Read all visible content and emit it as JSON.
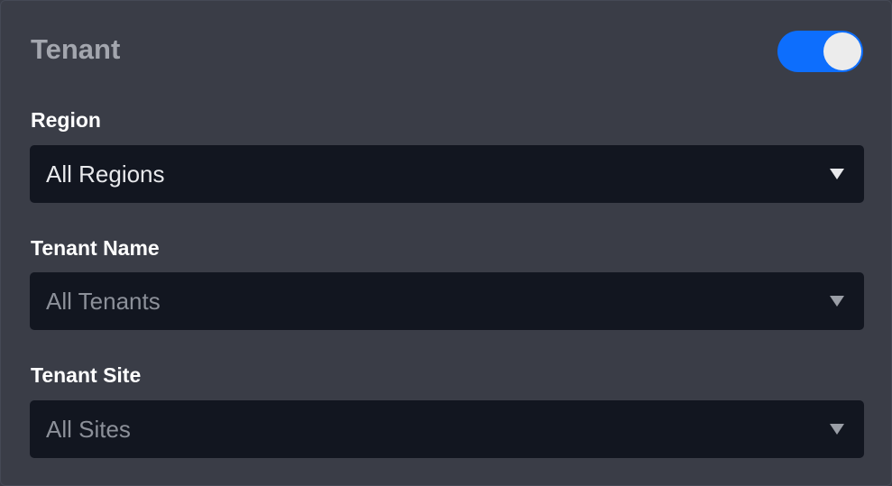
{
  "panel": {
    "title": "Tenant",
    "toggle": {
      "on": true,
      "color": "#0d6efd"
    }
  },
  "fields": [
    {
      "label": "Region",
      "value": "All Regions",
      "enabled": true
    },
    {
      "label": "Tenant Name",
      "value": "All Tenants",
      "enabled": false
    },
    {
      "label": "Tenant Site",
      "value": "All Sites",
      "enabled": false
    }
  ]
}
